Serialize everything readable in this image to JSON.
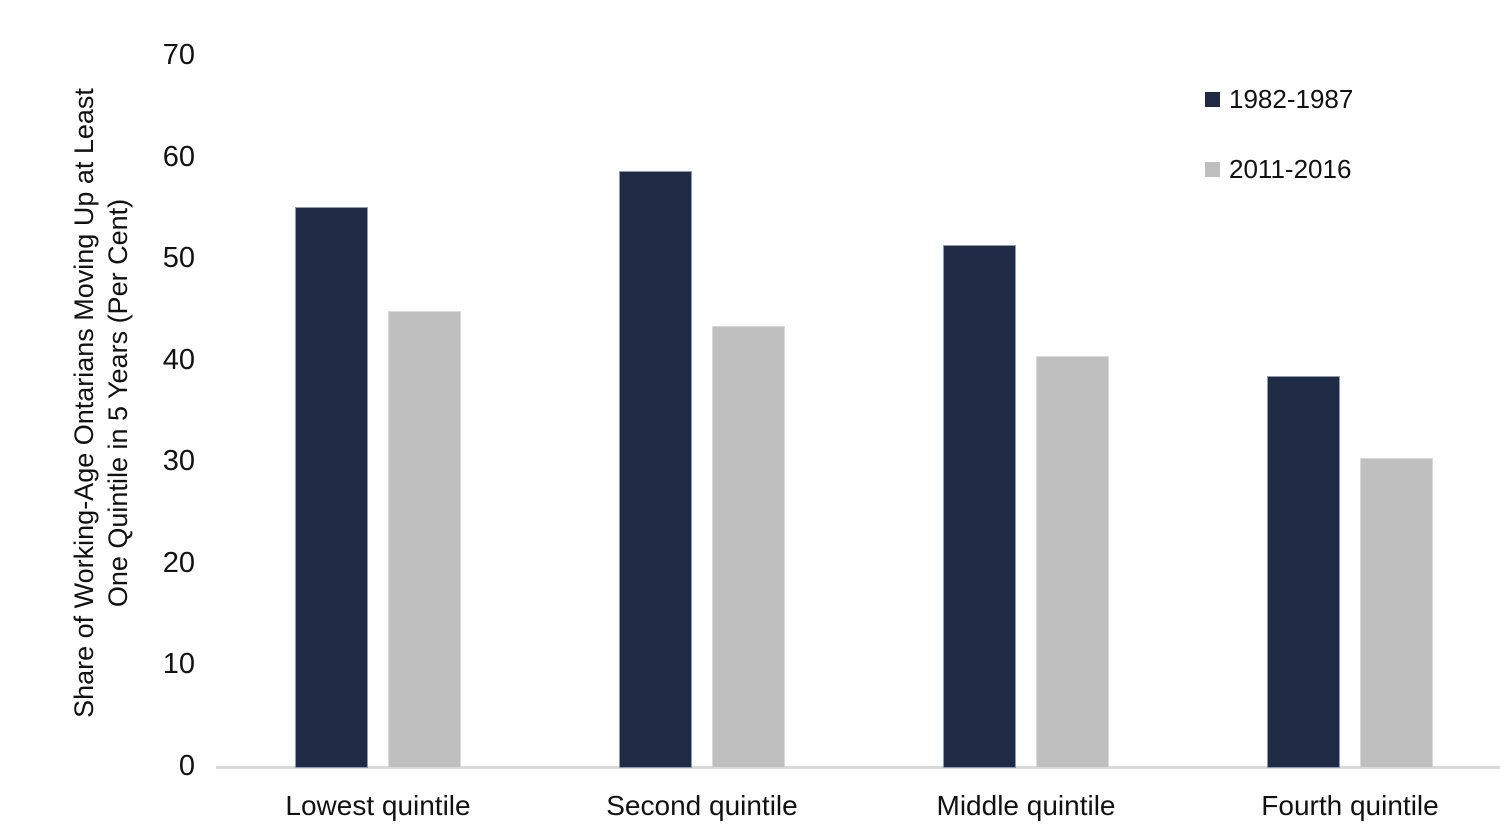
{
  "chart_data": {
    "type": "bar",
    "title": "",
    "categories": [
      "Lowest quintile",
      "Second quintile",
      "Middle quintile",
      "Fourth quintile"
    ],
    "series": [
      {
        "name": "1982-1987",
        "color": "#1f2b45",
        "border_color": "#8d9cb4",
        "values": [
          55.2,
          58.8,
          51.5,
          38.6
        ]
      },
      {
        "name": "2011-2016",
        "color": "#bfbfbf",
        "border_color": "#d9d9d9",
        "values": [
          45.0,
          43.5,
          40.6,
          30.5
        ]
      }
    ],
    "xlabel": "",
    "ylabel": "Share of Working-Age Ontarians Moving Up at Least One Quintile in 5 Years (Per Cent)",
    "ylabel_lines": [
      "Share of Working-Age Ontarians Moving Up at Least",
      "One Quintile in 5 Years (Per Cent)"
    ],
    "ylim": [
      0,
      70
    ],
    "yticks": [
      0,
      10,
      20,
      30,
      40,
      50,
      60,
      70
    ],
    "grid": false,
    "legend_position": "top-right",
    "axis_line_color": "#d9d9d9",
    "text_color": "#111111"
  }
}
